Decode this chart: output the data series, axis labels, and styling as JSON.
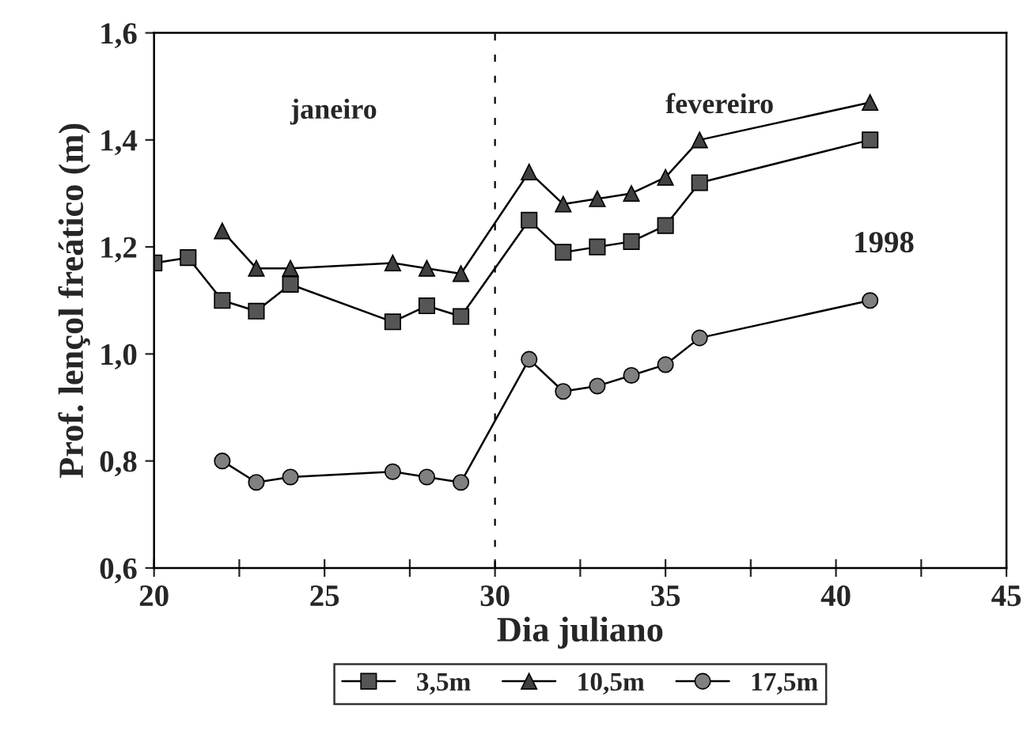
{
  "chart_data": {
    "type": "line",
    "xlabel": "Dia juliano",
    "ylabel": "Prof. lençol freático (m)",
    "xlim": [
      20,
      45
    ],
    "xticks": [
      20,
      {
        "value": 22.5,
        "label": null
      },
      25,
      {
        "value": 27.5,
        "label": null
      },
      30,
      {
        "value": 32.5,
        "label": null
      },
      35,
      {
        "value": 37.5,
        "label": null
      },
      40,
      {
        "value": 42.5,
        "label": null
      },
      45
    ],
    "ylim": [
      0.6,
      1.6
    ],
    "yticks": [
      {
        "value": 0.6,
        "label": "0,6"
      },
      {
        "value": 0.8,
        "label": "0,8"
      },
      {
        "value": 1.0,
        "label": "1,0"
      },
      {
        "value": 1.2,
        "label": "1,2"
      },
      {
        "value": 1.4,
        "label": "1,4"
      },
      {
        "value": 1.6,
        "label": "1,6"
      }
    ],
    "series": [
      {
        "name": "3,5m",
        "color": "#555555",
        "marker": "square",
        "x": [
          20,
          21,
          22,
          23,
          24,
          27,
          28,
          29,
          31,
          32,
          33,
          34,
          35,
          36,
          41
        ],
        "values": [
          1.17,
          1.18,
          1.1,
          1.08,
          1.13,
          1.06,
          1.09,
          1.07,
          1.25,
          1.19,
          1.2,
          1.21,
          1.24,
          1.32,
          1.4
        ]
      },
      {
        "name": "10,5m",
        "color": "#404040",
        "marker": "triangle",
        "x": [
          22,
          23,
          24,
          27,
          28,
          29,
          31,
          32,
          33,
          34,
          35,
          36,
          41
        ],
        "values": [
          1.23,
          1.16,
          1.16,
          1.17,
          1.16,
          1.15,
          1.34,
          1.28,
          1.29,
          1.3,
          1.33,
          1.4,
          1.47
        ]
      },
      {
        "name": "17,5m",
        "color": "#808080",
        "marker": "circle",
        "x": [
          22,
          23,
          24,
          27,
          28,
          29,
          31,
          32,
          33,
          34,
          35,
          36,
          41
        ],
        "values": [
          0.8,
          0.76,
          0.77,
          0.78,
          0.77,
          0.76,
          0.99,
          0.93,
          0.94,
          0.96,
          0.98,
          1.03,
          1.1
        ]
      }
    ],
    "ref_lines": [
      {
        "axis": "x",
        "value": 30,
        "line_style": "dashed",
        "color": "#000000"
      }
    ],
    "annotations": [
      "janeiro",
      "fevereiro",
      "1998"
    ],
    "legend": "bottom",
    "grid": false,
    "line_style": "solid"
  }
}
